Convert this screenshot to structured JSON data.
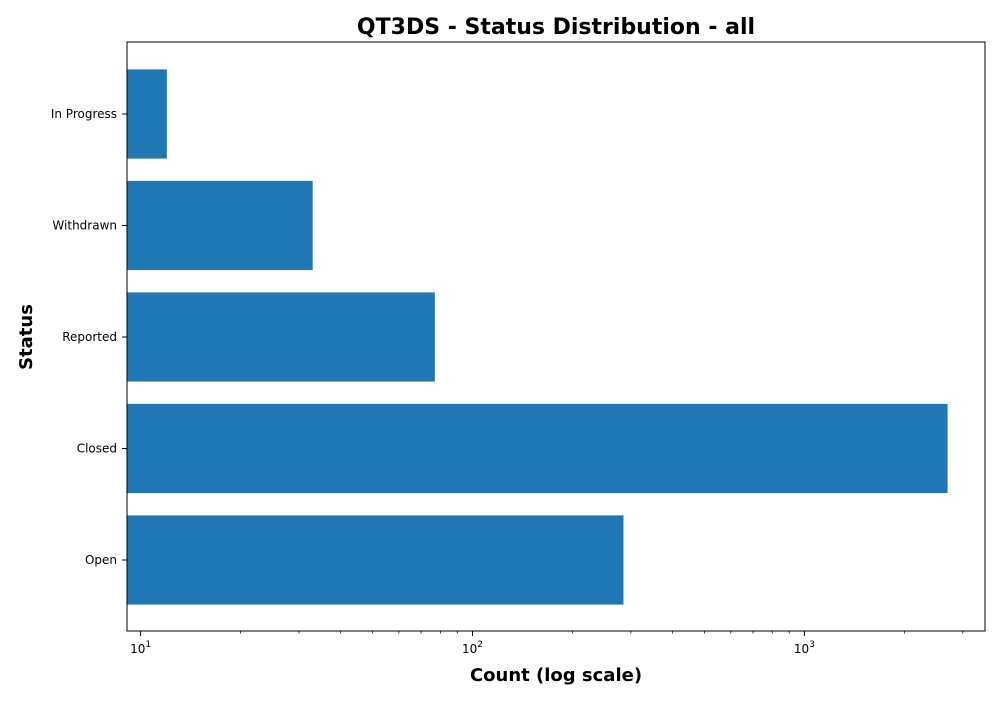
{
  "chart_data": {
    "type": "bar",
    "orientation": "horizontal",
    "title": "QT3DS - Status Distribution - all",
    "xlabel": "Count (log scale)",
    "ylabel": "Status",
    "x_scale": "log",
    "xlim": [
      9.1,
      3500
    ],
    "x_ticks": [
      {
        "value": 10,
        "base": "10",
        "exp": "1"
      },
      {
        "value": 100,
        "base": "10",
        "exp": "2"
      },
      {
        "value": 1000,
        "base": "10",
        "exp": "3"
      }
    ],
    "categories": [
      "In Progress",
      "Withdrawn",
      "Reported",
      "Closed",
      "Open"
    ],
    "values": [
      12,
      33,
      77,
      2700,
      285
    ],
    "bar_color": "#1f77b4",
    "grid": false
  }
}
